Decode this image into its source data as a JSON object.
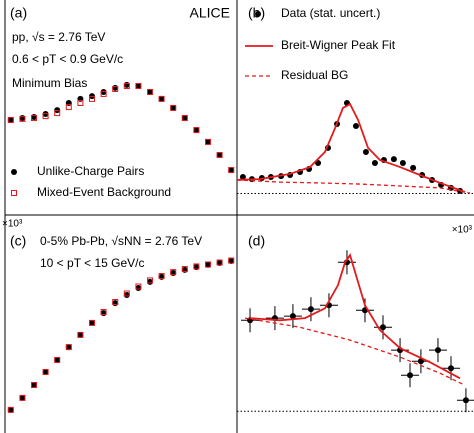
{
  "chart_data": [
    {
      "type": "scatter",
      "panel_label": "(a)",
      "annotations": [
        "ALICE",
        "pp, √s = 2.76 TeV",
        "0.6 < pT < 0.9 GeV/c",
        "Minimum Bias"
      ],
      "xlim": [
        0,
        1
      ],
      "ylim": [
        0,
        1
      ],
      "series": [
        {
          "name": "Unlike-Charge Pairs",
          "color": "#000000",
          "marker": "dot",
          "x": [
            0.025,
            0.075,
            0.125,
            0.175,
            0.225,
            0.275,
            0.325,
            0.375,
            0.425,
            0.475,
            0.525,
            0.575,
            0.625,
            0.675,
            0.725,
            0.775,
            0.825,
            0.875,
            0.925,
            0.975
          ],
          "values": [
            0.442,
            0.451,
            0.456,
            0.47,
            0.488,
            0.521,
            0.54,
            0.553,
            0.572,
            0.591,
            0.605,
            0.6,
            0.572,
            0.54,
            0.498,
            0.451,
            0.395,
            0.34,
            0.279,
            0.209
          ]
        },
        {
          "name": "Mixed-Event Background",
          "color": "#e41a1c",
          "marker": "open-square",
          "x": [
            0.025,
            0.075,
            0.125,
            0.175,
            0.225,
            0.275,
            0.325,
            0.375,
            0.425,
            0.475,
            0.525,
            0.575,
            0.625,
            0.675,
            0.725,
            0.775,
            0.825,
            0.875,
            0.925,
            0.975
          ],
          "values": [
            0.442,
            0.447,
            0.451,
            0.46,
            0.474,
            0.502,
            0.521,
            0.54,
            0.563,
            0.586,
            0.6,
            0.6,
            0.572,
            0.54,
            0.498,
            0.451,
            0.395,
            0.34,
            0.279,
            0.209
          ]
        }
      ]
    },
    {
      "type": "scatter",
      "panel_label": "(b)",
      "annotations": [],
      "xlim": [
        0,
        1
      ],
      "ylim": [
        -0.1,
        0.9
      ],
      "hline": 0,
      "series": [
        {
          "name": "Data (stat. uncert.)",
          "color": "#000000",
          "marker": "dot",
          "x": [
            0.025,
            0.063,
            0.105,
            0.143,
            0.186,
            0.224,
            0.266,
            0.304,
            0.342,
            0.384,
            0.422,
            0.464,
            0.502,
            0.544,
            0.582,
            0.62,
            0.662,
            0.7,
            0.743,
            0.781,
            0.823,
            0.861,
            0.903,
            0.941
          ],
          "values": [
            0.077,
            0.067,
            0.072,
            0.077,
            0.081,
            0.086,
            0.1,
            0.114,
            0.142,
            0.212,
            0.323,
            0.421,
            0.314,
            0.193,
            0.142,
            0.156,
            0.16,
            0.142,
            0.119,
            0.086,
            0.063,
            0.04,
            0.026,
            0.012
          ]
        },
        {
          "name": "Breit-Wigner Peak Fit",
          "color": "#e41a1c",
          "marker": "line",
          "x": [
            0,
            0.097,
            0.224,
            0.308,
            0.371,
            0.414,
            0.447,
            0.477,
            0.511,
            0.553,
            0.603,
            0.688,
            0.772,
            0.857,
            0.962
          ],
          "values": [
            0.063,
            0.067,
            0.091,
            0.123,
            0.193,
            0.305,
            0.398,
            0.416,
            0.342,
            0.212,
            0.156,
            0.123,
            0.086,
            0.049,
            0.007
          ]
        },
        {
          "name": "Residual BG",
          "color": "#e41a1c",
          "marker": "dashed",
          "x": [
            0,
            0.181,
            0.35,
            0.519,
            0.688,
            0.857,
            0.983
          ],
          "values": [
            0.063,
            0.053,
            0.049,
            0.044,
            0.035,
            0.026,
            0.002
          ]
        }
      ]
    },
    {
      "type": "scatter",
      "panel_label": "(c)",
      "axis_multiplier": "×10³",
      "annotations": [
        "0-5% Pb-Pb, √sNN = 2.76 TeV",
        "10 < pT < 15 GeV/c"
      ],
      "xlim": [
        0,
        1
      ],
      "ylim": [
        0,
        1
      ],
      "series": [
        {
          "color": "#000000",
          "marker": "dot",
          "x": [
            0.025,
            0.075,
            0.125,
            0.175,
            0.225,
            0.275,
            0.325,
            0.375,
            0.425,
            0.475,
            0.525,
            0.575,
            0.625,
            0.675,
            0.725,
            0.775,
            0.825,
            0.875,
            0.925,
            0.975
          ],
          "values": [
            0.106,
            0.161,
            0.22,
            0.28,
            0.335,
            0.394,
            0.45,
            0.505,
            0.55,
            0.596,
            0.633,
            0.665,
            0.693,
            0.716,
            0.734,
            0.748,
            0.761,
            0.771,
            0.78,
            0.789
          ]
        },
        {
          "color": "#e41a1c",
          "marker": "open-square",
          "x": [
            0.025,
            0.075,
            0.125,
            0.175,
            0.225,
            0.275,
            0.325,
            0.375,
            0.425,
            0.475,
            0.525,
            0.575,
            0.625,
            0.675,
            0.725,
            0.775,
            0.825,
            0.875,
            0.925,
            0.975
          ],
          "values": [
            0.106,
            0.161,
            0.22,
            0.28,
            0.335,
            0.394,
            0.45,
            0.505,
            0.555,
            0.601,
            0.64,
            0.672,
            0.7,
            0.72,
            0.738,
            0.752,
            0.764,
            0.773,
            0.782,
            0.791
          ]
        }
      ]
    },
    {
      "type": "scatter",
      "panel_label": "(d)",
      "axis_multiplier": "×10³",
      "annotations": [],
      "xlim": [
        0,
        1
      ],
      "ylim": [
        -0.1,
        0.9
      ],
      "hline": 0,
      "series": [
        {
          "color": "#000000",
          "marker": "dot",
          "x": [
            0.055,
            0.16,
            0.236,
            0.312,
            0.388,
            0.464,
            0.54,
            0.616,
            0.688,
            0.73,
            0.776,
            0.848,
            0.903,
            0.966
          ],
          "values": [
            0.417,
            0.427,
            0.436,
            0.468,
            0.486,
            0.683,
            0.463,
            0.385,
            0.28,
            0.165,
            0.229,
            0.28,
            0.197,
            0.05
          ],
          "errors": [
            0.055,
            0.055,
            0.055,
            0.055,
            0.055,
            0.055,
            0.055,
            0.055,
            0.055,
            0.055,
            0.055,
            0.055,
            0.055,
            0.055
          ],
          "xerrors": [
            0.038,
            0.038,
            0.038,
            0.038,
            0.038,
            0.038,
            0.038,
            0.038,
            0.038,
            0.038,
            0.038,
            0.038,
            0.038,
            0.038
          ]
        },
        {
          "color": "#e41a1c",
          "marker": "line",
          "x": [
            0.055,
            0.181,
            0.287,
            0.371,
            0.426,
            0.456,
            0.477,
            0.502,
            0.54,
            0.603,
            0.688,
            0.814,
            0.941
          ],
          "values": [
            0.427,
            0.417,
            0.427,
            0.472,
            0.578,
            0.683,
            0.716,
            0.624,
            0.486,
            0.372,
            0.289,
            0.225,
            0.151
          ]
        },
        {
          "color": "#e41a1c",
          "marker": "dashed",
          "x": [
            0.034,
            0.266,
            0.477,
            0.688,
            0.857,
            0.962
          ],
          "values": [
            0.427,
            0.385,
            0.326,
            0.248,
            0.174,
            0.119
          ]
        }
      ]
    }
  ]
}
